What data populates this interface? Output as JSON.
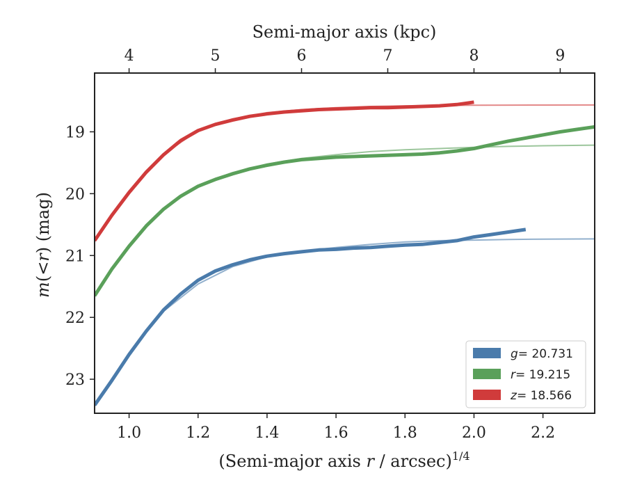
{
  "chart_data": {
    "type": "line",
    "xlabel": "(Semi-major axis r / arcsec)^{1/4}",
    "xlabel_parts": {
      "pre": "(Semi-major axis ",
      "var": "r",
      "post": " / arcsec)",
      "sup": "1/4"
    },
    "ylabel": "m(<r) (mag)",
    "ylabel_parts": {
      "var": "m",
      "mid": "(",
      "lt": "<",
      "r": "r",
      "post": ") (mag)"
    },
    "top_xlabel": "Semi-major axis (kpc)",
    "xlim": [
      0.9,
      2.35
    ],
    "ylim": [
      23.55,
      18.05
    ],
    "y_inverted": true,
    "x_ticks": [
      1.0,
      1.2,
      1.4,
      1.6,
      1.8,
      2.0,
      2.2
    ],
    "x_tick_labels": [
      "1.0",
      "1.2",
      "1.4",
      "1.6",
      "1.8",
      "2.0",
      "2.2"
    ],
    "y_ticks": [
      19,
      20,
      21,
      22,
      23
    ],
    "y_tick_labels": [
      "19",
      "20",
      "21",
      "22",
      "23"
    ],
    "top_ticks": [
      {
        "x": 1.0,
        "label": "4"
      },
      {
        "x": 1.25,
        "label": "5"
      },
      {
        "x": 1.5,
        "label": "6"
      },
      {
        "x": 1.75,
        "label": "7"
      },
      {
        "x": 2.0,
        "label": "8"
      },
      {
        "x": 2.25,
        "label": "9"
      }
    ],
    "legend_position": "lower-right",
    "grid": false,
    "series": [
      {
        "name": "g = 20.731",
        "legend_var": "g",
        "legend_value": "= 20.731",
        "color": "#4a7bab",
        "data_x": [
          0.9,
          0.95,
          1.0,
          1.05,
          1.1,
          1.15,
          1.2,
          1.25,
          1.3,
          1.35,
          1.4,
          1.45,
          1.5,
          1.55,
          1.6,
          1.65,
          1.7,
          1.75,
          1.8,
          1.85,
          1.9,
          1.95,
          2.0,
          2.05,
          2.1,
          2.15
        ],
        "data_y": [
          23.42,
          23.02,
          22.6,
          22.22,
          21.88,
          21.62,
          21.4,
          21.25,
          21.15,
          21.07,
          21.01,
          20.97,
          20.94,
          20.91,
          20.9,
          20.88,
          20.87,
          20.85,
          20.83,
          20.82,
          20.79,
          20.76,
          20.7,
          20.66,
          20.62,
          20.58
        ],
        "model_x": [
          0.9,
          1.0,
          1.1,
          1.2,
          1.3,
          1.4,
          1.5,
          1.6,
          1.7,
          1.8,
          1.9,
          2.0,
          2.1,
          2.2,
          2.35
        ],
        "model_y": [
          23.4,
          22.58,
          21.9,
          21.46,
          21.18,
          21.02,
          20.93,
          20.87,
          20.82,
          20.78,
          20.76,
          20.75,
          20.74,
          20.735,
          20.731
        ]
      },
      {
        "name": "r = 19.215",
        "legend_var": "r",
        "legend_value": "= 19.215",
        "color": "#5aa05a",
        "data_x": [
          0.9,
          0.95,
          1.0,
          1.05,
          1.1,
          1.15,
          1.2,
          1.25,
          1.3,
          1.35,
          1.4,
          1.45,
          1.5,
          1.55,
          1.6,
          1.65,
          1.7,
          1.75,
          1.8,
          1.85,
          1.9,
          1.95,
          2.0,
          2.05,
          2.1,
          2.15,
          2.2,
          2.25,
          2.3,
          2.35
        ],
        "data_y": [
          21.65,
          21.22,
          20.85,
          20.52,
          20.25,
          20.04,
          19.88,
          19.77,
          19.68,
          19.6,
          19.54,
          19.49,
          19.45,
          19.43,
          19.41,
          19.4,
          19.39,
          19.38,
          19.37,
          19.36,
          19.34,
          19.31,
          19.27,
          19.21,
          19.15,
          19.1,
          19.05,
          19.0,
          18.96,
          18.92
        ],
        "model_x": [
          0.9,
          1.0,
          1.1,
          1.2,
          1.3,
          1.4,
          1.5,
          1.6,
          1.7,
          1.8,
          1.9,
          2.0,
          2.1,
          2.2,
          2.35
        ],
        "model_y": [
          21.62,
          20.83,
          20.25,
          19.87,
          19.66,
          19.52,
          19.43,
          19.37,
          19.32,
          19.29,
          19.27,
          19.25,
          19.235,
          19.225,
          19.215
        ]
      },
      {
        "name": "z = 18.566",
        "legend_var": "z",
        "legend_value": "= 18.566",
        "color": "#d03b3b",
        "data_x": [
          0.9,
          0.95,
          1.0,
          1.05,
          1.1,
          1.15,
          1.2,
          1.25,
          1.3,
          1.35,
          1.4,
          1.45,
          1.5,
          1.55,
          1.6,
          1.65,
          1.7,
          1.75,
          1.8,
          1.85,
          1.9,
          1.95,
          2.0
        ],
        "data_y": [
          20.76,
          20.35,
          19.98,
          19.65,
          19.37,
          19.14,
          18.98,
          18.88,
          18.81,
          18.75,
          18.71,
          18.68,
          18.66,
          18.64,
          18.63,
          18.62,
          18.61,
          18.61,
          18.6,
          18.59,
          18.58,
          18.56,
          18.52
        ],
        "model_x": [
          0.9,
          1.0,
          1.1,
          1.2,
          1.3,
          1.4,
          1.5,
          1.6,
          1.7,
          1.8,
          1.9,
          2.0,
          2.1,
          2.2,
          2.35
        ],
        "model_y": [
          20.74,
          19.96,
          19.36,
          18.98,
          18.79,
          18.69,
          18.64,
          18.61,
          18.59,
          18.58,
          18.575,
          18.57,
          18.568,
          18.567,
          18.566
        ]
      }
    ]
  }
}
